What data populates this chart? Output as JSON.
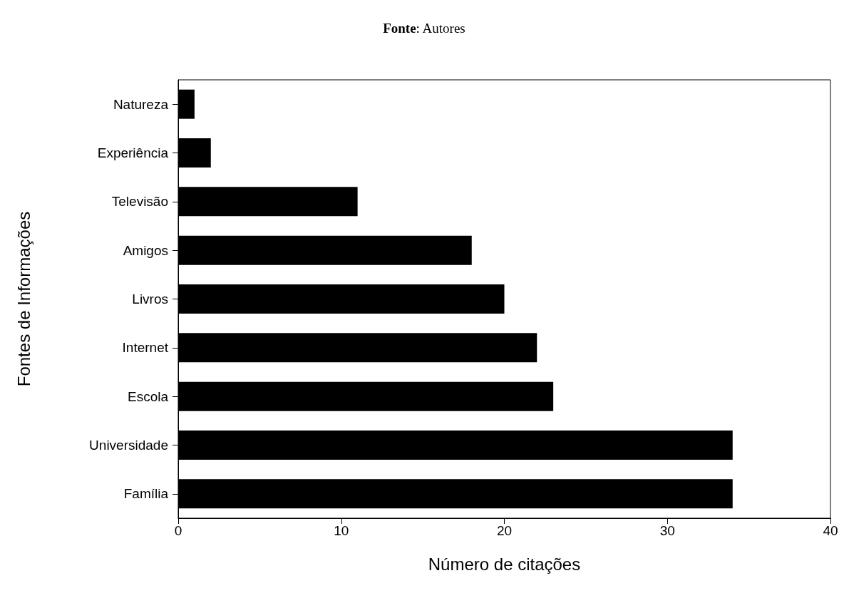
{
  "chart_data": {
    "type": "bar",
    "orientation": "horizontal",
    "annotations": [
      "Fonte: Autores"
    ],
    "xlabel": "Número de citações",
    "ylabel": "Fontes de Informações",
    "categories": [
      "Natureza",
      "Experiência",
      "Televisão",
      "Amigos",
      "Livros",
      "Internet",
      "Escola",
      "Universidade",
      "Família"
    ],
    "values": [
      1,
      2,
      11,
      18,
      20,
      22,
      23,
      34,
      34
    ],
    "color": "#000000",
    "xlim": [
      0,
      40
    ],
    "xticks": [
      0,
      10,
      20,
      30,
      40
    ],
    "grid": false
  }
}
